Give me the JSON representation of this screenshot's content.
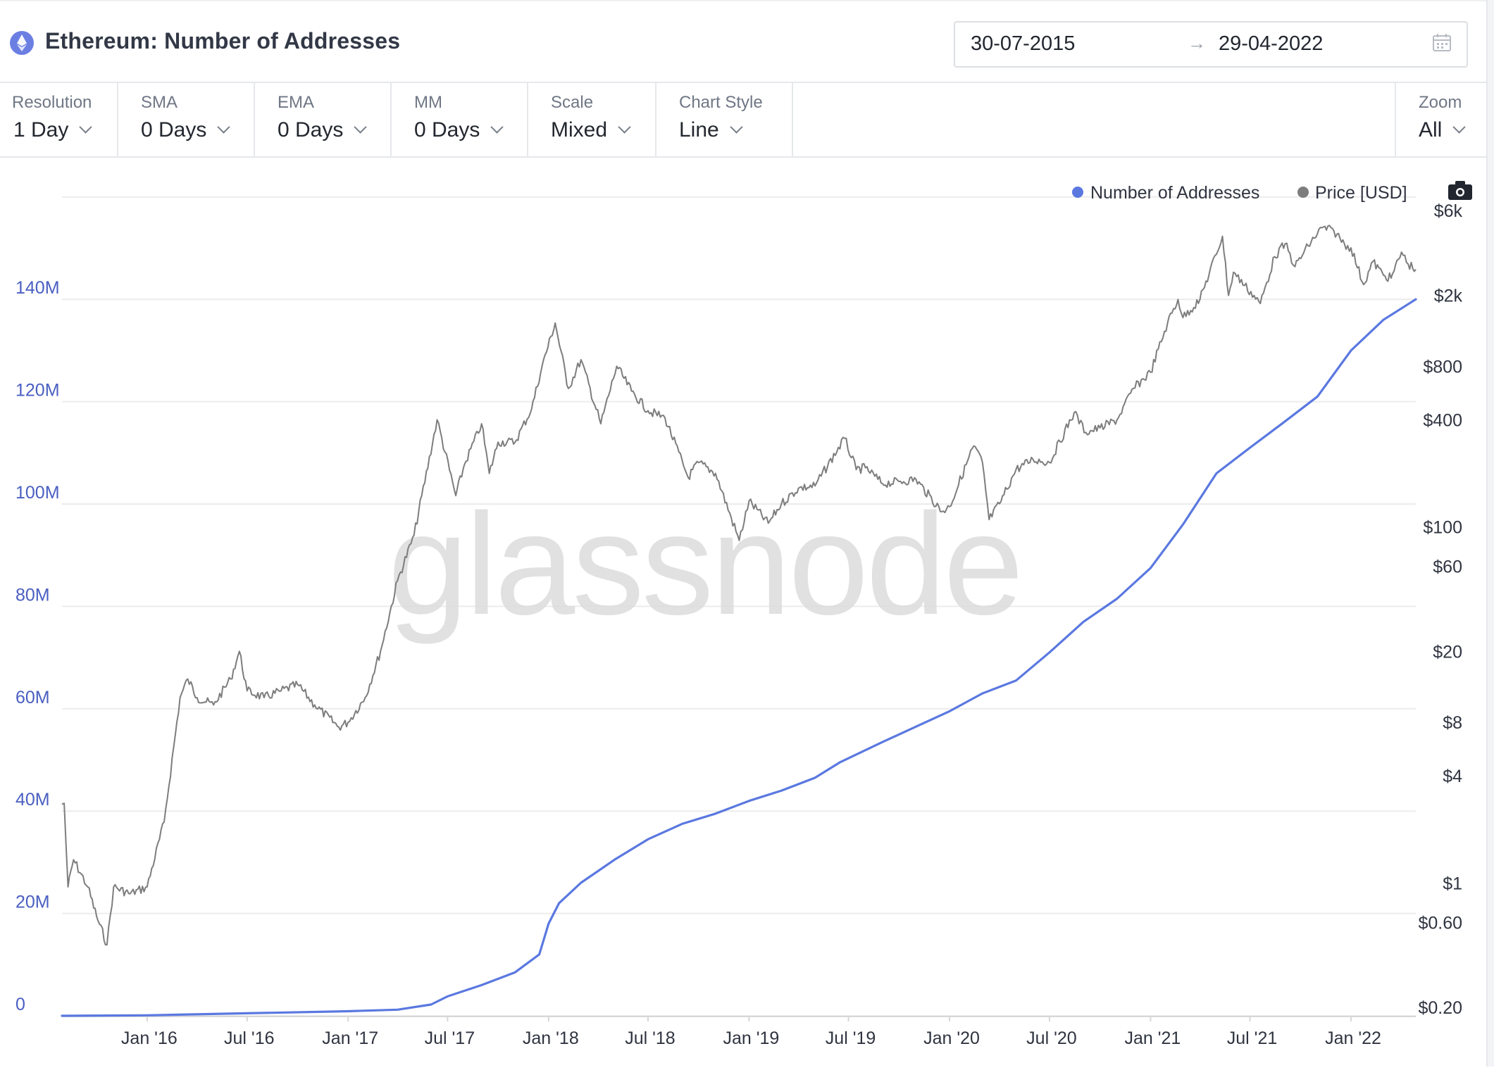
{
  "header": {
    "title": "Ethereum: Number of Addresses",
    "date_from": "30-07-2015",
    "date_arrow": "→",
    "date_to": "29-04-2022"
  },
  "toolbar": {
    "resolution": {
      "label": "Resolution",
      "value": "1 Day"
    },
    "sma": {
      "label": "SMA",
      "value": "0 Days"
    },
    "ema": {
      "label": "EMA",
      "value": "0 Days"
    },
    "mm": {
      "label": "MM",
      "value": "0 Days"
    },
    "scale": {
      "label": "Scale",
      "value": "Mixed"
    },
    "chart_style": {
      "label": "Chart Style",
      "value": "Line"
    },
    "zoom": {
      "label": "Zoom",
      "value": "All"
    }
  },
  "watermark": "glassnode",
  "colors": {
    "addresses": "#5a78e0",
    "price": "#7d7d7d",
    "accent_icon": "#6b7fe3",
    "left_axis_text": "#4a5fc1"
  },
  "chart_data": {
    "type": "line",
    "x_axis": {
      "range": [
        "2015-07-30",
        "2022-04-29"
      ],
      "ticks": [
        {
          "date": "2016-01-01",
          "label": "Jan '16"
        },
        {
          "date": "2016-07-01",
          "label": "Jul '16"
        },
        {
          "date": "2017-01-01",
          "label": "Jan '17"
        },
        {
          "date": "2017-07-01",
          "label": "Jul '17"
        },
        {
          "date": "2018-01-01",
          "label": "Jan '18"
        },
        {
          "date": "2018-07-01",
          "label": "Jul '18"
        },
        {
          "date": "2019-01-01",
          "label": "Jan '19"
        },
        {
          "date": "2019-07-01",
          "label": "Jul '19"
        },
        {
          "date": "2020-01-01",
          "label": "Jan '20"
        },
        {
          "date": "2020-07-01",
          "label": "Jul '20"
        },
        {
          "date": "2021-01-01",
          "label": "Jan '21"
        },
        {
          "date": "2021-07-01",
          "label": "Jul '21"
        },
        {
          "date": "2022-01-01",
          "label": "Jan '22"
        }
      ]
    },
    "left_axis": {
      "range": [
        0,
        160000000
      ],
      "ticks": [
        {
          "value": 0,
          "label": "0"
        },
        {
          "value": 20000000,
          "label": "20M"
        },
        {
          "value": 40000000,
          "label": "40M"
        },
        {
          "value": 60000000,
          "label": "60M"
        },
        {
          "value": 80000000,
          "label": "80M"
        },
        {
          "value": 100000000,
          "label": "100M"
        },
        {
          "value": 120000000,
          "label": "120M"
        },
        {
          "value": 140000000,
          "label": "140M"
        }
      ]
    },
    "right_axis": {
      "scale": "log",
      "ticks": [
        {
          "value": 0.2,
          "label": "$0.20"
        },
        {
          "value": 0.6,
          "label": "$0.60"
        },
        {
          "value": 1,
          "label": "$1"
        },
        {
          "value": 4,
          "label": "$4"
        },
        {
          "value": 8,
          "label": "$8"
        },
        {
          "value": 20,
          "label": "$20"
        },
        {
          "value": 60,
          "label": "$60"
        },
        {
          "value": 100,
          "label": "$100"
        },
        {
          "value": 400,
          "label": "$400"
        },
        {
          "value": 800,
          "label": "$800"
        },
        {
          "value": 2000,
          "label": "$2k"
        },
        {
          "value": 6000,
          "label": "$6k"
        }
      ]
    },
    "grid": true,
    "legend": {
      "placement": "top-right"
    },
    "series": [
      {
        "name": "Number of Addresses",
        "axis": "left",
        "points": [
          [
            "2015-07-30",
            0
          ],
          [
            "2016-01-01",
            100000
          ],
          [
            "2016-07-01",
            500000
          ],
          [
            "2017-01-01",
            900000
          ],
          [
            "2017-04-01",
            1200000
          ],
          [
            "2017-06-01",
            2200000
          ],
          [
            "2017-07-01",
            3800000
          ],
          [
            "2017-09-01",
            6000000
          ],
          [
            "2017-11-01",
            8500000
          ],
          [
            "2017-12-15",
            12000000
          ],
          [
            "2018-01-01",
            18000000
          ],
          [
            "2018-01-20",
            22000000
          ],
          [
            "2018-03-01",
            26000000
          ],
          [
            "2018-05-01",
            30500000
          ],
          [
            "2018-07-01",
            34500000
          ],
          [
            "2018-09-01",
            37500000
          ],
          [
            "2018-11-01",
            39500000
          ],
          [
            "2019-01-01",
            42000000
          ],
          [
            "2019-03-01",
            44000000
          ],
          [
            "2019-05-01",
            46500000
          ],
          [
            "2019-06-15",
            49500000
          ],
          [
            "2019-09-01",
            53500000
          ],
          [
            "2019-11-01",
            56500000
          ],
          [
            "2020-01-01",
            59500000
          ],
          [
            "2020-03-01",
            63000000
          ],
          [
            "2020-05-01",
            65500000
          ],
          [
            "2020-07-01",
            71000000
          ],
          [
            "2020-09-01",
            77000000
          ],
          [
            "2020-11-01",
            81500000
          ],
          [
            "2021-01-01",
            87500000
          ],
          [
            "2021-03-01",
            96000000
          ],
          [
            "2021-05-01",
            106000000
          ],
          [
            "2021-07-01",
            111000000
          ],
          [
            "2021-09-01",
            116000000
          ],
          [
            "2021-11-01",
            121000000
          ],
          [
            "2022-01-01",
            130000000
          ],
          [
            "2022-03-01",
            136000000
          ],
          [
            "2022-04-29",
            140000000
          ]
        ]
      },
      {
        "name": "Price [USD]",
        "axis": "right",
        "points": [
          [
            "2015-07-30",
            2.77
          ],
          [
            "2015-08-03",
            2.8
          ],
          [
            "2015-08-10",
            0.95
          ],
          [
            "2015-08-20",
            1.35
          ],
          [
            "2015-09-15",
            0.95
          ],
          [
            "2015-10-01",
            0.65
          ],
          [
            "2015-10-20",
            0.45
          ],
          [
            "2015-11-01",
            0.95
          ],
          [
            "2015-12-01",
            0.87
          ],
          [
            "2016-01-01",
            0.95
          ],
          [
            "2016-02-01",
            2.2
          ],
          [
            "2016-03-01",
            11
          ],
          [
            "2016-03-15",
            14
          ],
          [
            "2016-04-01",
            11
          ],
          [
            "2016-05-01",
            10
          ],
          [
            "2016-06-01",
            14
          ],
          [
            "2016-06-17",
            20
          ],
          [
            "2016-07-01",
            12
          ],
          [
            "2016-08-01",
            11
          ],
          [
            "2016-09-01",
            12
          ],
          [
            "2016-10-01",
            13
          ],
          [
            "2016-11-01",
            10
          ],
          [
            "2016-12-15",
            7.5
          ],
          [
            "2017-01-01",
            8
          ],
          [
            "2017-02-01",
            11
          ],
          [
            "2017-03-01",
            20
          ],
          [
            "2017-04-01",
            50
          ],
          [
            "2017-05-01",
            90
          ],
          [
            "2017-06-12",
            400
          ],
          [
            "2017-07-16",
            150
          ],
          [
            "2017-08-01",
            225
          ],
          [
            "2017-09-01",
            380
          ],
          [
            "2017-09-15",
            200
          ],
          [
            "2017-10-01",
            300
          ],
          [
            "2017-11-01",
            300
          ],
          [
            "2017-12-01",
            460
          ],
          [
            "2017-12-20",
            800
          ],
          [
            "2018-01-13",
            1400
          ],
          [
            "2018-02-06",
            600
          ],
          [
            "2018-03-01",
            870
          ],
          [
            "2018-04-06",
            380
          ],
          [
            "2018-05-05",
            800
          ],
          [
            "2018-06-01",
            580
          ],
          [
            "2018-07-01",
            450
          ],
          [
            "2018-08-01",
            410
          ],
          [
            "2018-09-12",
            190
          ],
          [
            "2018-10-01",
            230
          ],
          [
            "2018-11-01",
            200
          ],
          [
            "2018-12-14",
            84
          ],
          [
            "2019-01-01",
            140
          ],
          [
            "2019-02-05",
            105
          ],
          [
            "2019-03-01",
            135
          ],
          [
            "2019-04-01",
            165
          ],
          [
            "2019-05-01",
            170
          ],
          [
            "2019-06-24",
            315
          ],
          [
            "2019-07-15",
            210
          ],
          [
            "2019-08-01",
            215
          ],
          [
            "2019-09-01",
            175
          ],
          [
            "2019-10-01",
            180
          ],
          [
            "2019-11-01",
            185
          ],
          [
            "2019-12-18",
            122
          ],
          [
            "2020-01-01",
            130
          ],
          [
            "2020-02-14",
            285
          ],
          [
            "2020-03-01",
            230
          ],
          [
            "2020-03-13",
            110
          ],
          [
            "2020-04-01",
            135
          ],
          [
            "2020-05-01",
            210
          ],
          [
            "2020-06-01",
            240
          ],
          [
            "2020-07-01",
            230
          ],
          [
            "2020-08-15",
            440
          ],
          [
            "2020-09-05",
            340
          ],
          [
            "2020-10-01",
            360
          ],
          [
            "2020-11-01",
            400
          ],
          [
            "2020-12-01",
            600
          ],
          [
            "2021-01-01",
            740
          ],
          [
            "2021-02-01",
            1400
          ],
          [
            "2021-02-20",
            1900
          ],
          [
            "2021-03-01",
            1500
          ],
          [
            "2021-04-01",
            1900
          ],
          [
            "2021-05-12",
            4300
          ],
          [
            "2021-05-23",
            2000
          ],
          [
            "2021-06-01",
            2700
          ],
          [
            "2021-07-20",
            1800
          ],
          [
            "2021-08-15",
            3300
          ],
          [
            "2021-09-03",
            3900
          ],
          [
            "2021-09-21",
            2900
          ],
          [
            "2021-10-15",
            3800
          ],
          [
            "2021-11-09",
            4800
          ],
          [
            "2021-12-01",
            4600
          ],
          [
            "2021-12-20",
            3900
          ],
          [
            "2022-01-01",
            3700
          ],
          [
            "2022-01-24",
            2300
          ],
          [
            "2022-02-10",
            3100
          ],
          [
            "2022-03-01",
            2600
          ],
          [
            "2022-03-15",
            2500
          ],
          [
            "2022-04-03",
            3500
          ],
          [
            "2022-04-15",
            3000
          ],
          [
            "2022-04-29",
            2800
          ]
        ]
      }
    ]
  }
}
